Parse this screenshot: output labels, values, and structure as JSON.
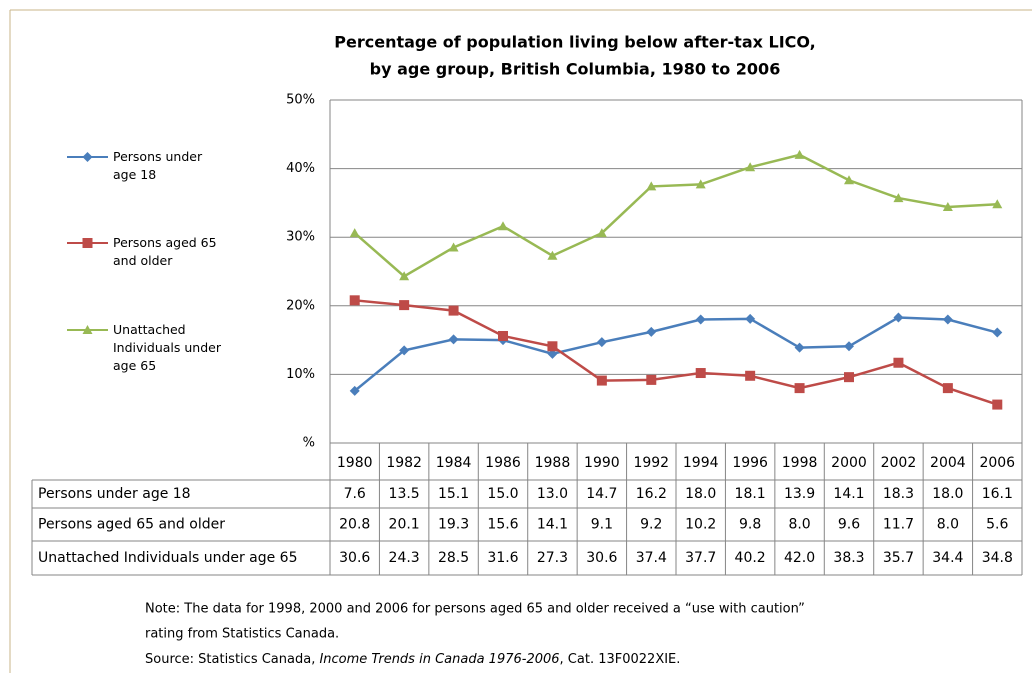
{
  "chart_data": {
    "type": "line",
    "title": [
      "Percentage of population living below after-tax LICO,",
      "by age group, British Columbia, 1980 to 2006"
    ],
    "categories": [
      "1980",
      "1982",
      "1984",
      "1986",
      "1988",
      "1990",
      "1992",
      "1994",
      "1996",
      "1998",
      "2000",
      "2002",
      "2004",
      "2006"
    ],
    "series": [
      {
        "name": "Persons under age 18",
        "color": "#4a7ebb",
        "marker": "diamond",
        "values": [
          7.6,
          13.5,
          15.1,
          15.0,
          13.0,
          14.7,
          16.2,
          18.0,
          18.1,
          13.9,
          14.1,
          18.3,
          18.0,
          16.1
        ],
        "value_labels": [
          "7.6",
          "13.5",
          "15.1",
          "15.0",
          "13.0",
          "14.7",
          "16.2",
          "18.0",
          "18.1",
          "13.9",
          "14.1",
          "18.3",
          "18.0",
          "16.1"
        ]
      },
      {
        "name": "Persons aged 65 and older",
        "color": "#be4b48",
        "marker": "square",
        "values": [
          20.8,
          20.1,
          19.3,
          15.6,
          14.1,
          9.1,
          9.2,
          10.2,
          9.8,
          8.0,
          9.6,
          11.7,
          8.0,
          5.6
        ],
        "value_labels": [
          "20.8",
          "20.1",
          "19.3",
          "15.6",
          "14.1",
          "9.1",
          "9.2",
          "10.2",
          "9.8",
          "8.0",
          "9.6",
          "11.7",
          "8.0",
          "5.6"
        ]
      },
      {
        "name": "Unattached Individuals under age 65",
        "color": "#98b954",
        "marker": "triangle",
        "values": [
          30.6,
          24.3,
          28.5,
          31.6,
          27.3,
          30.6,
          37.4,
          37.7,
          40.2,
          42.0,
          38.3,
          35.7,
          34.4,
          34.8
        ],
        "value_labels": [
          "30.6",
          "24.3",
          "28.5",
          "31.6",
          "27.3",
          "30.6",
          "37.4",
          "37.7",
          "40.2",
          "42.0",
          "38.3",
          "35.7",
          "34.4",
          "34.8"
        ]
      }
    ],
    "ylim": [
      0,
      50
    ],
    "yticks": [
      {
        "value": 0,
        "label": "%"
      },
      {
        "value": 10,
        "label": "10%"
      },
      {
        "value": 20,
        "label": "20%"
      },
      {
        "value": 30,
        "label": "30%"
      },
      {
        "value": 40,
        "label": "40%"
      },
      {
        "value": 50,
        "label": "50%"
      }
    ],
    "grid": true,
    "note": [
      "Note: The data for 1998, 2000 and 2006 for persons aged 65 and older received a “use with caution”",
      "rating from Statistics Canada."
    ],
    "source": {
      "prefix": "Source: Statistics Canada, ",
      "publication": "Income Trends in Canada 1976-2006",
      "suffix": ", Cat. 13F0022XIE."
    }
  }
}
